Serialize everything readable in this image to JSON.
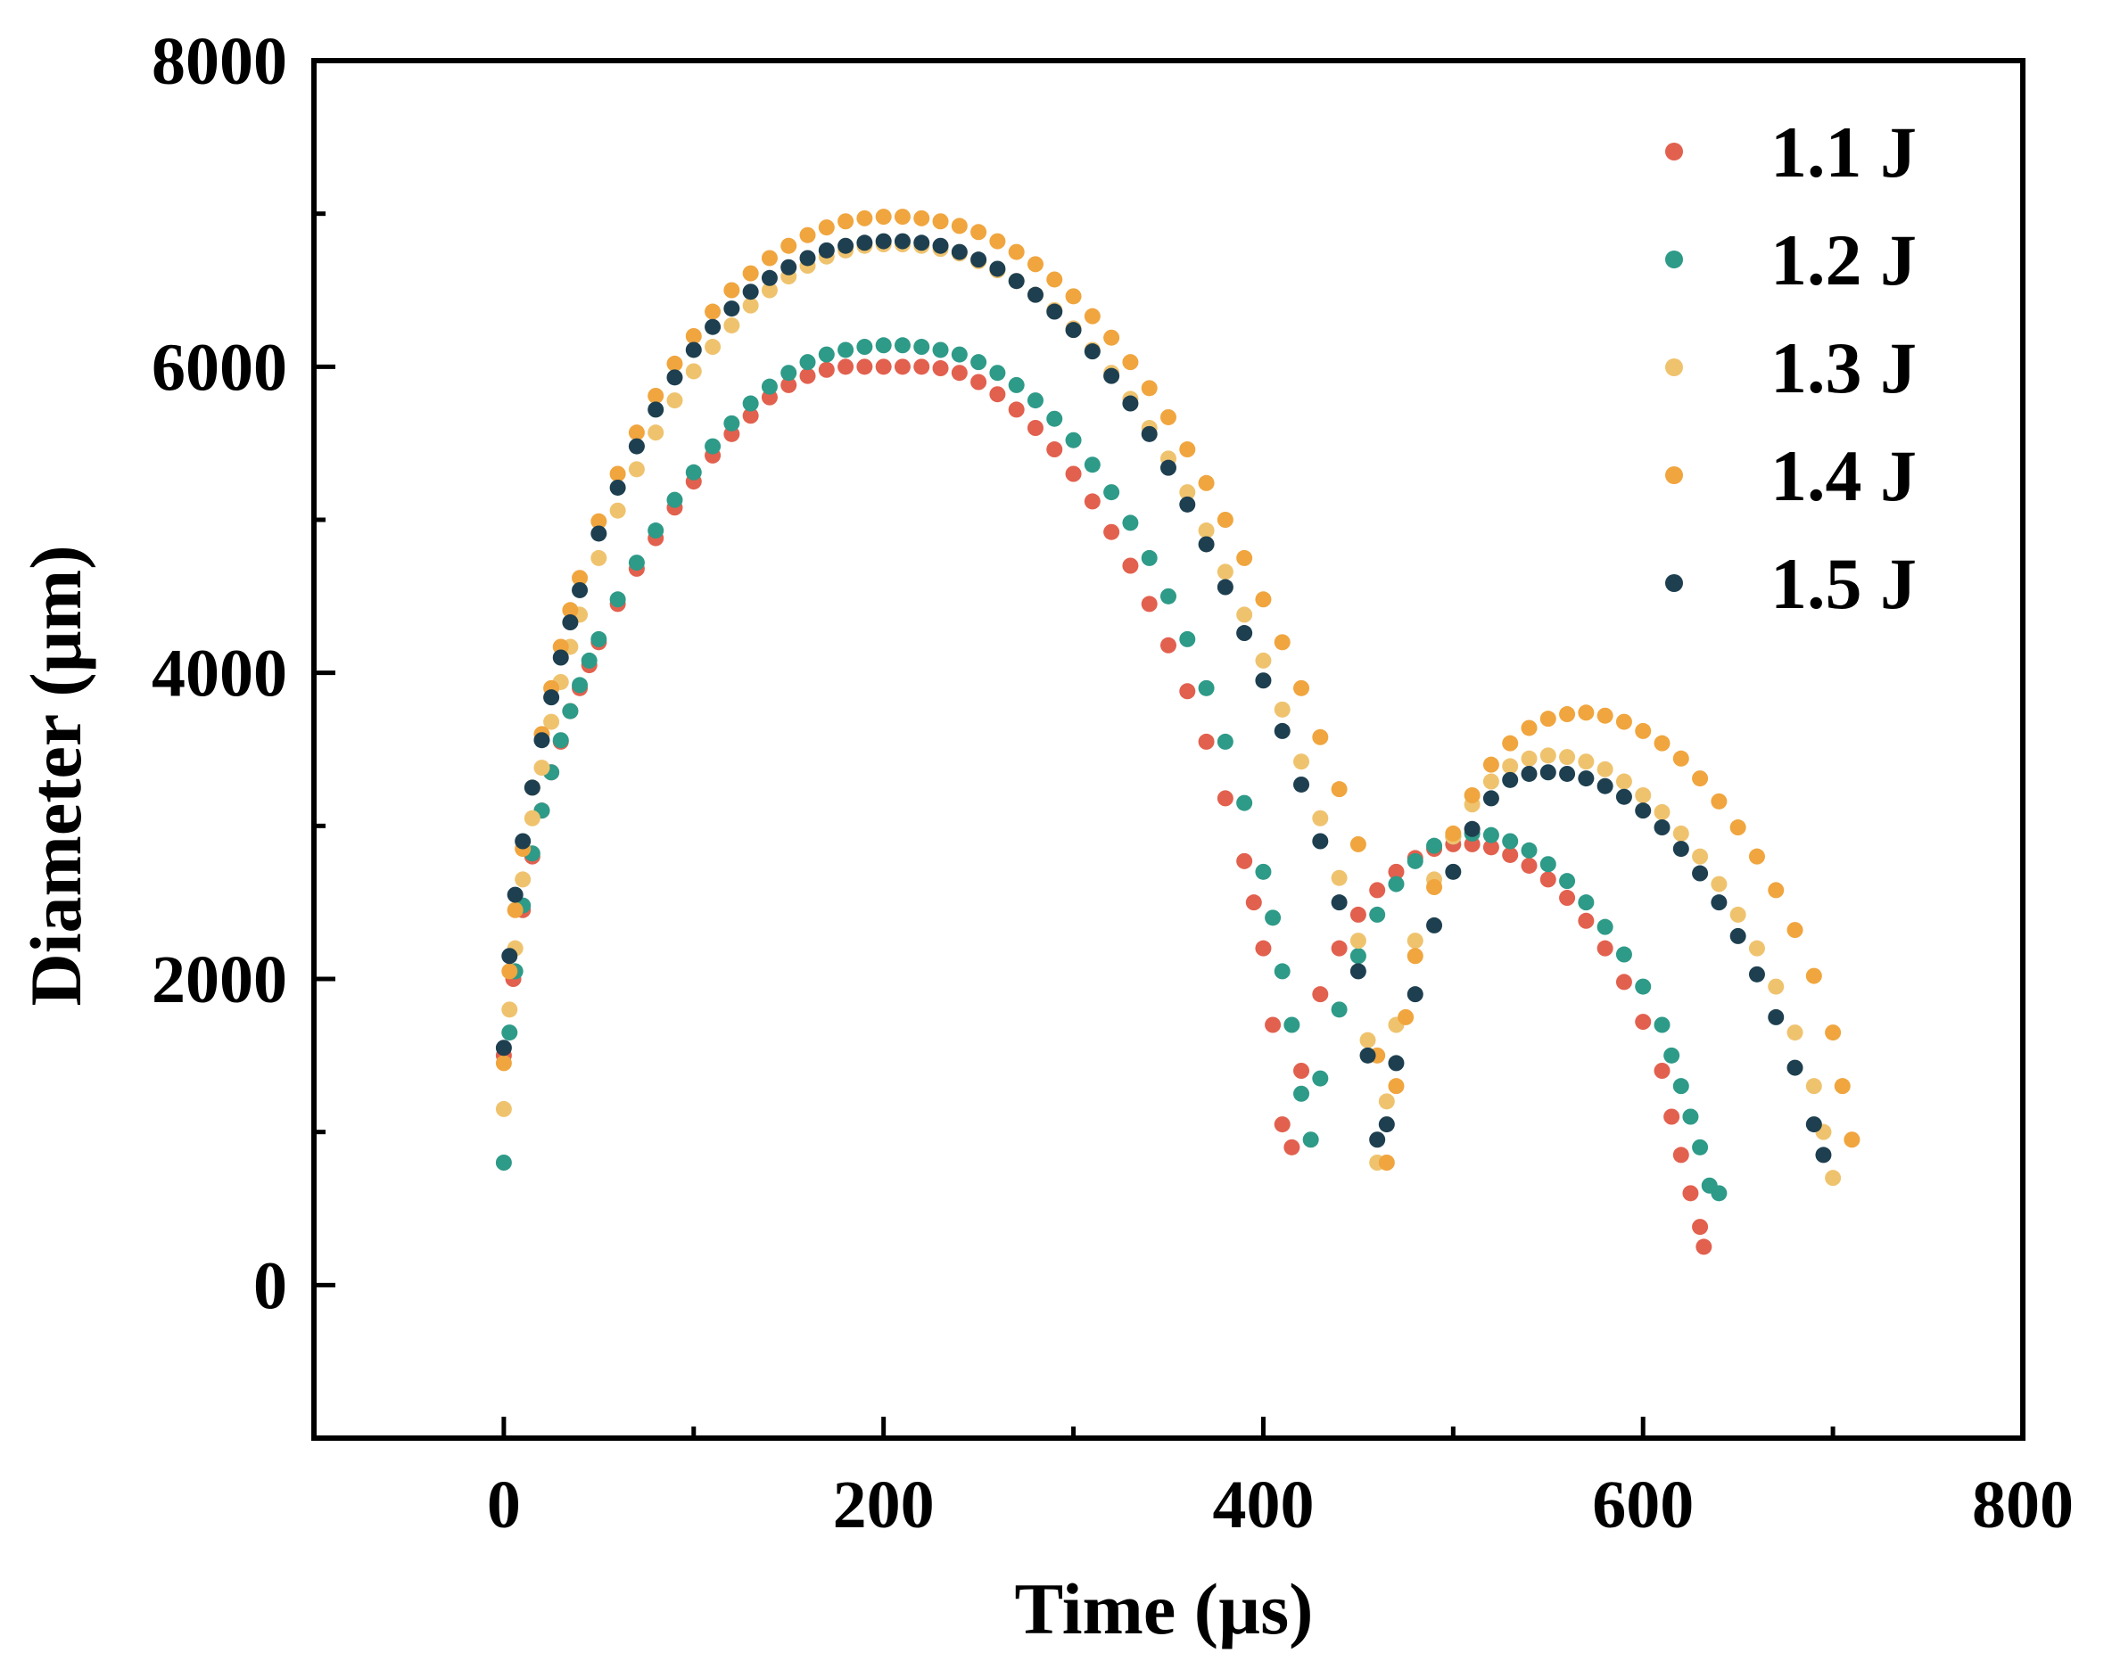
{
  "chart_data": {
    "type": "scatter",
    "title": "",
    "xlabel": "Time (µs)",
    "ylabel": "Diameter (µm)",
    "xlim": [
      -100,
      800
    ],
    "ylim": [
      -1000,
      8000
    ],
    "xticks": [
      0,
      200,
      400,
      600,
      800
    ],
    "yticks": [
      0,
      2000,
      4000,
      6000,
      8000
    ],
    "x_minor_ticks": [
      100,
      300,
      500,
      700
    ],
    "y_minor_ticks": [
      1000,
      3000,
      5000,
      7000
    ],
    "legend_position": "top-right",
    "series": [
      {
        "name": "1.1 J",
        "color": "#E2604E",
        "x": [
          0,
          5,
          10,
          15,
          20,
          25,
          30,
          35,
          40,
          45,
          50,
          60,
          70,
          80,
          90,
          100,
          110,
          120,
          130,
          140,
          150,
          160,
          170,
          180,
          190,
          200,
          210,
          220,
          230,
          240,
          250,
          260,
          270,
          280,
          290,
          300,
          310,
          320,
          330,
          340,
          350,
          360,
          370,
          380,
          390,
          395,
          400,
          405,
          410,
          415,
          420,
          430,
          440,
          450,
          460,
          470,
          480,
          490,
          500,
          510,
          520,
          530,
          540,
          550,
          560,
          570,
          580,
          590,
          600,
          610,
          615,
          620,
          625,
          630,
          632
        ],
        "y": [
          1500,
          2000,
          2450,
          2800,
          3100,
          3350,
          3550,
          3750,
          3900,
          4050,
          4200,
          4450,
          4680,
          4880,
          5080,
          5250,
          5420,
          5560,
          5680,
          5800,
          5880,
          5940,
          5980,
          6000,
          6000,
          6000,
          6000,
          6000,
          5990,
          5960,
          5900,
          5820,
          5720,
          5600,
          5460,
          5300,
          5120,
          4920,
          4700,
          4450,
          4180,
          3880,
          3550,
          3180,
          2770,
          2500,
          2200,
          1700,
          1050,
          900,
          1400,
          1900,
          2200,
          2420,
          2580,
          2700,
          2790,
          2850,
          2880,
          2880,
          2860,
          2810,
          2740,
          2650,
          2530,
          2380,
          2200,
          1980,
          1720,
          1400,
          1100,
          850,
          600,
          380,
          250
        ]
      },
      {
        "name": "1.2 J",
        "color": "#2E9A88",
        "x": [
          0,
          3,
          6,
          10,
          15,
          20,
          25,
          30,
          35,
          40,
          45,
          50,
          60,
          70,
          80,
          90,
          100,
          110,
          120,
          130,
          140,
          150,
          160,
          170,
          180,
          190,
          200,
          210,
          220,
          230,
          240,
          250,
          260,
          270,
          280,
          290,
          300,
          310,
          320,
          330,
          340,
          350,
          360,
          370,
          380,
          390,
          400,
          405,
          410,
          415,
          420,
          425,
          430,
          440,
          450,
          460,
          470,
          480,
          490,
          500,
          510,
          520,
          530,
          540,
          550,
          560,
          570,
          580,
          590,
          600,
          610,
          615,
          620,
          625,
          630,
          635,
          640
        ],
        "y": [
          800,
          1650,
          2050,
          2480,
          2820,
          3100,
          3350,
          3560,
          3750,
          3920,
          4080,
          4220,
          4480,
          4720,
          4930,
          5130,
          5310,
          5480,
          5630,
          5760,
          5870,
          5960,
          6030,
          6080,
          6110,
          6130,
          6140,
          6140,
          6130,
          6110,
          6080,
          6030,
          5960,
          5880,
          5780,
          5660,
          5520,
          5360,
          5180,
          4980,
          4750,
          4500,
          4220,
          3900,
          3550,
          3150,
          2700,
          2400,
          2050,
          1700,
          1250,
          950,
          1350,
          1800,
          2150,
          2420,
          2620,
          2770,
          2870,
          2930,
          2950,
          2940,
          2900,
          2840,
          2750,
          2640,
          2500,
          2340,
          2160,
          1950,
          1700,
          1500,
          1300,
          1100,
          900,
          650,
          600
        ]
      },
      {
        "name": "1.3 J",
        "color": "#EFC36E",
        "x": [
          0,
          3,
          6,
          10,
          15,
          20,
          25,
          30,
          35,
          40,
          50,
          60,
          70,
          80,
          90,
          100,
          110,
          120,
          130,
          140,
          150,
          160,
          170,
          180,
          190,
          200,
          210,
          220,
          230,
          240,
          250,
          260,
          270,
          280,
          290,
          300,
          310,
          320,
          330,
          340,
          350,
          360,
          370,
          380,
          390,
          400,
          410,
          420,
          430,
          440,
          450,
          455,
          460,
          465,
          470,
          480,
          490,
          500,
          510,
          520,
          530,
          540,
          550,
          560,
          570,
          580,
          590,
          600,
          610,
          620,
          630,
          640,
          650,
          660,
          670,
          680,
          690,
          695,
          700
        ],
        "y": [
          1150,
          1800,
          2200,
          2650,
          3050,
          3380,
          3680,
          3940,
          4170,
          4380,
          4750,
          5060,
          5330,
          5570,
          5780,
          5970,
          6130,
          6270,
          6400,
          6500,
          6590,
          6660,
          6720,
          6760,
          6790,
          6800,
          6800,
          6790,
          6770,
          6740,
          6690,
          6630,
          6560,
          6470,
          6370,
          6250,
          6110,
          5960,
          5790,
          5600,
          5400,
          5180,
          4930,
          4660,
          4380,
          4080,
          3760,
          3420,
          3050,
          2660,
          2250,
          1600,
          800,
          1200,
          1700,
          2250,
          2650,
          2930,
          3140,
          3290,
          3390,
          3440,
          3460,
          3450,
          3420,
          3370,
          3290,
          3200,
          3090,
          2950,
          2800,
          2620,
          2420,
          2200,
          1950,
          1650,
          1300,
          1000,
          700
        ]
      },
      {
        "name": "1.4 J",
        "color": "#F0A53E",
        "x": [
          0,
          3,
          6,
          10,
          15,
          20,
          25,
          30,
          35,
          40,
          50,
          60,
          70,
          80,
          90,
          100,
          110,
          120,
          130,
          140,
          150,
          160,
          170,
          180,
          190,
          200,
          210,
          220,
          230,
          240,
          250,
          260,
          270,
          280,
          290,
          300,
          310,
          320,
          330,
          340,
          350,
          360,
          370,
          380,
          390,
          400,
          410,
          420,
          430,
          440,
          450,
          460,
          465,
          470,
          475,
          480,
          490,
          500,
          510,
          520,
          530,
          540,
          550,
          560,
          570,
          580,
          590,
          600,
          610,
          620,
          630,
          640,
          650,
          660,
          670,
          680,
          690,
          700,
          705,
          710
        ],
        "y": [
          1450,
          2050,
          2450,
          2850,
          3250,
          3600,
          3900,
          4170,
          4410,
          4620,
          4990,
          5300,
          5570,
          5810,
          6020,
          6200,
          6360,
          6500,
          6610,
          6710,
          6790,
          6860,
          6910,
          6950,
          6970,
          6980,
          6980,
          6970,
          6950,
          6920,
          6880,
          6820,
          6750,
          6670,
          6570,
          6460,
          6330,
          6190,
          6030,
          5860,
          5670,
          5460,
          5240,
          5000,
          4750,
          4480,
          4200,
          3900,
          3580,
          3240,
          2880,
          1500,
          800,
          1300,
          1750,
          2150,
          2600,
          2950,
          3200,
          3400,
          3540,
          3640,
          3700,
          3730,
          3740,
          3720,
          3680,
          3620,
          3540,
          3440,
          3310,
          3160,
          2990,
          2800,
          2580,
          2320,
          2020,
          1650,
          1300,
          950
        ]
      },
      {
        "name": "1.5 J",
        "color": "#1E3F4F",
        "x": [
          0,
          3,
          6,
          10,
          15,
          20,
          25,
          30,
          35,
          40,
          50,
          60,
          70,
          80,
          90,
          100,
          110,
          120,
          130,
          140,
          150,
          160,
          170,
          180,
          190,
          200,
          210,
          220,
          230,
          240,
          250,
          260,
          270,
          280,
          290,
          300,
          310,
          320,
          330,
          340,
          350,
          360,
          370,
          380,
          390,
          400,
          410,
          420,
          430,
          440,
          450,
          455,
          460,
          465,
          470,
          480,
          490,
          500,
          510,
          520,
          530,
          540,
          550,
          560,
          570,
          580,
          590,
          600,
          610,
          620,
          630,
          640,
          650,
          660,
          670,
          680,
          690,
          695
        ],
        "y": [
          1550,
          2150,
          2550,
          2900,
          3250,
          3560,
          3840,
          4100,
          4330,
          4540,
          4910,
          5210,
          5480,
          5720,
          5930,
          6110,
          6260,
          6380,
          6490,
          6580,
          6650,
          6710,
          6760,
          6790,
          6810,
          6820,
          6820,
          6810,
          6790,
          6750,
          6700,
          6640,
          6560,
          6470,
          6360,
          6240,
          6100,
          5940,
          5760,
          5560,
          5340,
          5100,
          4840,
          4560,
          4260,
          3950,
          3620,
          3270,
          2900,
          2500,
          2050,
          1500,
          950,
          1050,
          1450,
          1900,
          2350,
          2700,
          2980,
          3180,
          3300,
          3340,
          3350,
          3340,
          3310,
          3260,
          3190,
          3100,
          2990,
          2850,
          2690,
          2500,
          2280,
          2030,
          1750,
          1420,
          1050,
          850
        ]
      }
    ]
  }
}
